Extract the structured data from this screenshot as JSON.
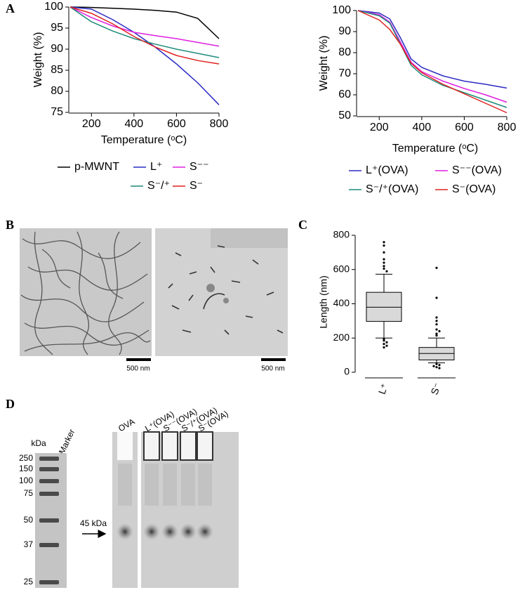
{
  "panel_labels": [
    "A",
    "B",
    "C",
    "D"
  ],
  "chart_data": [
    {
      "type": "line",
      "x_label": "Temperature (ᵒC)",
      "y_label": "Weight (%)",
      "x": [
        100,
        200,
        300,
        400,
        500,
        600,
        700,
        800
      ],
      "xlim": [
        100,
        800
      ],
      "xticks": [
        200,
        400,
        600,
        800
      ],
      "ylim": [
        75,
        100
      ],
      "yticks": [
        75,
        80,
        85,
        90,
        95,
        100
      ],
      "series": [
        {
          "name": "p-MWNT",
          "color": "#000000",
          "values": [
            100,
            99.9,
            99.7,
            99.5,
            99.2,
            98.8,
            97.3,
            92.5
          ]
        },
        {
          "name": "L⁺",
          "color": "#2b2bc4",
          "values": [
            100,
            99.5,
            97,
            94,
            90.5,
            86.5,
            82,
            76.8
          ]
        },
        {
          "name": "S⁻⁻",
          "color": "#e020e0",
          "values": [
            100,
            97.5,
            95.5,
            94,
            93.2,
            92.5,
            91.6,
            90.7
          ]
        },
        {
          "name": "S⁻/⁺",
          "color": "#1f8c7a",
          "values": [
            100,
            96.5,
            94.3,
            92.5,
            91.2,
            90,
            89,
            88
          ]
        },
        {
          "name": "S⁻",
          "color": "#e02020",
          "values": [
            100,
            98.5,
            96,
            93,
            90.5,
            88.5,
            87.3,
            86.5
          ]
        }
      ]
    },
    {
      "type": "line",
      "x_label": "Temperature (ᵒC)",
      "y_label": "Weight (%)",
      "x": [
        100,
        200,
        250,
        300,
        350,
        400,
        500,
        600,
        700,
        800
      ],
      "xlim": [
        100,
        800
      ],
      "xticks": [
        200,
        400,
        600,
        800
      ],
      "ylim": [
        50,
        100
      ],
      "yticks": [
        50,
        60,
        70,
        80,
        90,
        100
      ],
      "series": [
        {
          "name": "L⁺(OVA)",
          "color": "#2b2bc4",
          "values": [
            100,
            98.8,
            96,
            87,
            77,
            73,
            69,
            66.5,
            65,
            63.2
          ]
        },
        {
          "name": "S⁻⁻(OVA)",
          "color": "#e020e0",
          "values": [
            100,
            98,
            94.5,
            85,
            75.5,
            71,
            66.5,
            63,
            60,
            56.5
          ]
        },
        {
          "name": "S⁻/⁺(OVA)",
          "color": "#1f8c7a",
          "values": [
            100,
            97.5,
            94,
            84,
            74,
            69.5,
            64.5,
            61,
            57.5,
            54
          ]
        },
        {
          "name": "S⁻(OVA)",
          "color": "#e02020",
          "values": [
            100,
            95.5,
            91,
            84,
            75,
            70.5,
            65,
            60.5,
            56,
            51.5
          ]
        }
      ]
    },
    {
      "type": "box",
      "y_label": "Length (nm)",
      "categories": [
        "L⁺",
        "S⁻"
      ],
      "ylim": [
        0,
        800
      ],
      "yticks": [
        0,
        200,
        400,
        600,
        800
      ],
      "color": "#d9d9d9",
      "boxes": [
        {
          "whisker_low": 200,
          "q1": 297,
          "median": 380,
          "q3": 467,
          "whisker_high": 573,
          "outliers": [
            760,
            740,
            700,
            660,
            640,
            620,
            605,
            590,
            195,
            185,
            175,
            165,
            155,
            145
          ]
        },
        {
          "whisker_low": 55,
          "q1": 72,
          "median": 110,
          "q3": 145,
          "whisker_high": 200,
          "outliers": [
            610,
            435,
            320,
            300,
            280,
            250,
            240,
            225,
            215,
            48,
            42,
            36,
            30,
            24
          ]
        }
      ]
    }
  ],
  "images": {
    "scale_bars": [
      "500 nm",
      "500 nm"
    ]
  },
  "gel": {
    "unit": "kDa",
    "marker_label": "Marker",
    "ladder": [
      "250",
      "150",
      "100",
      "75",
      "50",
      "37",
      "25"
    ],
    "arrow_label": "45 kDa",
    "lanes": [
      "OVA",
      "L⁺(OVA)",
      "S⁻⁻(OVA)",
      "S⁻/⁺(OVA)",
      "S⁻(OVA)"
    ]
  }
}
